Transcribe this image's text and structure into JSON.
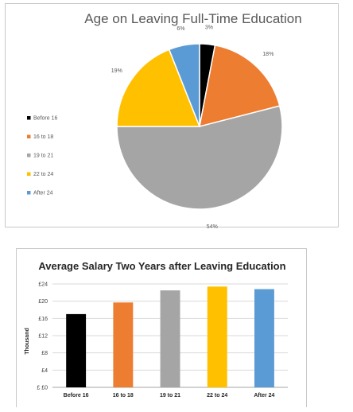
{
  "chart_data": [
    {
      "type": "pie",
      "title": "Age on Leaving Full-Time Education",
      "categories": [
        "Before 16",
        "16 to 18",
        "19 to 21",
        "22 to 24",
        "After 24"
      ],
      "values": [
        3,
        18,
        54,
        19,
        6
      ],
      "value_labels": [
        "3%",
        "18%",
        "54%",
        "19%",
        "6%"
      ],
      "colors": [
        "#000000",
        "#ED7D31",
        "#A5A5A5",
        "#FFC000",
        "#5B9BD5"
      ],
      "legend_position": "left"
    },
    {
      "type": "bar",
      "title": "Average Salary Two Years after Leaving Education",
      "categories": [
        "Before 16",
        "16 to 18",
        "19 to 21",
        "22 to 24",
        "After 24"
      ],
      "values": [
        17,
        19.7,
        22.5,
        23.4,
        22.8
      ],
      "colors": [
        "#000000",
        "#ED7D31",
        "#A5A5A5",
        "#FFC000",
        "#5B9BD5"
      ],
      "ylabel": "Thousand",
      "ylim": [
        0,
        24
      ],
      "yticks": [
        0,
        4,
        8,
        12,
        16,
        20,
        24
      ],
      "ytick_labels": [
        "£ £0",
        "£4",
        "£8",
        "£12",
        "£16",
        "£20",
        "£24"
      ],
      "grid": true
    }
  ]
}
